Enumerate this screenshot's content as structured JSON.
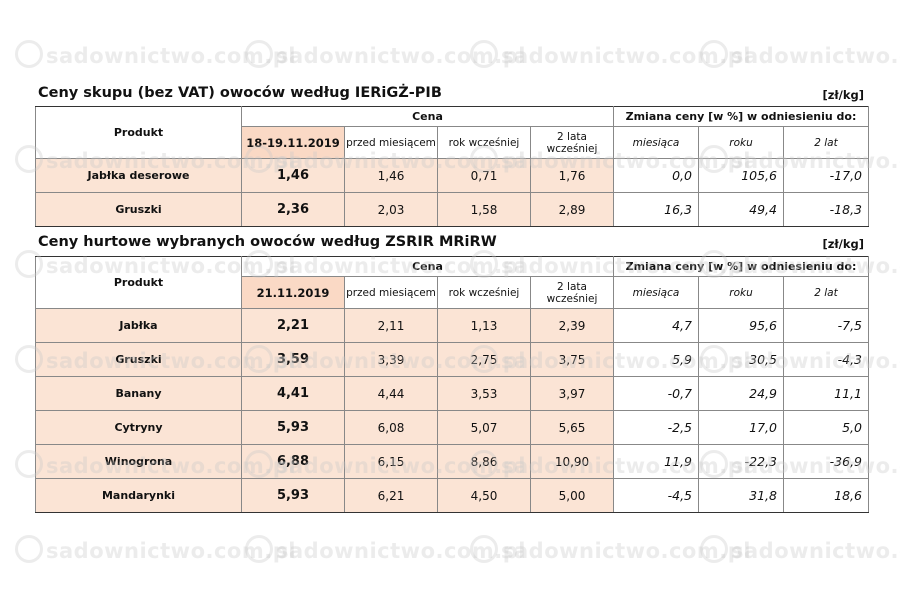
{
  "watermark": "sadownictwo.com.pl",
  "table1": {
    "title": "Ceny skupu (bez VAT) owoców według IERiGŻ-PIB",
    "unit": "[zł/kg]",
    "produkt_header": "Produkt",
    "cena_header": "Cena",
    "zmiana_header": "Zmiana ceny [w %] w odniesieniu do:",
    "date_col": "18-19.11.2019",
    "col_month_ago": "przed miesiącem",
    "col_year_ago": "rok wcześniej",
    "col_2y_ago": "2 lata wcześniej",
    "chg_month": "miesiąca",
    "chg_year": "roku",
    "chg_2y": "2 lat",
    "rows": [
      {
        "product": "Jabłka deserowe",
        "current": "1,46",
        "month_ago": "1,46",
        "year_ago": "0,71",
        "two_years_ago": "1,76",
        "chg_month": "0,0",
        "chg_year": "105,6",
        "chg_2y": "-17,0"
      },
      {
        "product": "Gruszki",
        "current": "2,36",
        "month_ago": "2,03",
        "year_ago": "1,58",
        "two_years_ago": "2,89",
        "chg_month": "16,3",
        "chg_year": "49,4",
        "chg_2y": "-18,3"
      }
    ]
  },
  "table2": {
    "title": "Ceny hurtowe wybranych owoców według ZSRIR MRiRW",
    "unit": "[zł/kg]",
    "produkt_header": "Produkt",
    "cena_header": "Cena",
    "zmiana_header": "Zmiana ceny [w %] w odniesieniu do:",
    "date_col": "21.11.2019",
    "col_month_ago": "przed miesiącem",
    "col_year_ago": "rok wcześniej",
    "col_2y_ago": "2 lata wcześniej",
    "chg_month": "miesiąca",
    "chg_year": "roku",
    "chg_2y": "2 lat",
    "rows": [
      {
        "product": "Jabłka",
        "current": "2,21",
        "month_ago": "2,11",
        "year_ago": "1,13",
        "two_years_ago": "2,39",
        "chg_month": "4,7",
        "chg_year": "95,6",
        "chg_2y": "-7,5"
      },
      {
        "product": "Gruszki",
        "current": "3,59",
        "month_ago": "3,39",
        "year_ago": "2,75",
        "two_years_ago": "3,75",
        "chg_month": "5,9",
        "chg_year": "30,5",
        "chg_2y": "-4,3"
      },
      {
        "product": "Banany",
        "current": "4,41",
        "month_ago": "4,44",
        "year_ago": "3,53",
        "two_years_ago": "3,97",
        "chg_month": "-0,7",
        "chg_year": "24,9",
        "chg_2y": "11,1"
      },
      {
        "product": "Cytryny",
        "current": "5,93",
        "month_ago": "6,08",
        "year_ago": "5,07",
        "two_years_ago": "5,65",
        "chg_month": "-2,5",
        "chg_year": "17,0",
        "chg_2y": "5,0"
      },
      {
        "product": "Winogrona",
        "current": "6,88",
        "month_ago": "6,15",
        "year_ago": "8,86",
        "two_years_ago": "10,90",
        "chg_month": "11,9",
        "chg_year": "-22,3",
        "chg_2y": "-36,9"
      },
      {
        "product": "Mandarynki",
        "current": "5,93",
        "month_ago": "6,21",
        "year_ago": "4,50",
        "two_years_ago": "5,00",
        "chg_month": "-4,5",
        "chg_year": "31,8",
        "chg_2y": "18,6"
      }
    ]
  }
}
